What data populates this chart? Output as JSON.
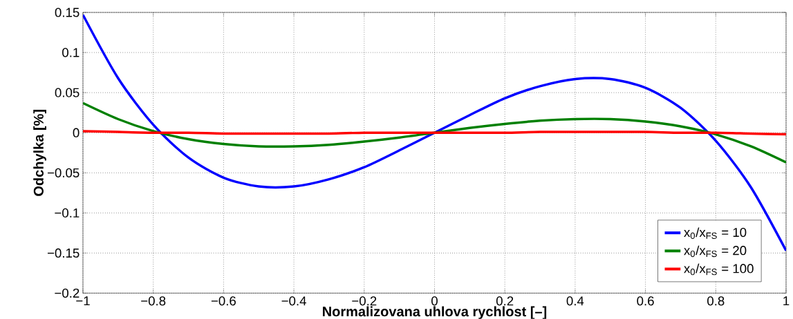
{
  "chart_data": {
    "type": "line",
    "xlabel": "Normalizovana uhlova rychlost [–]",
    "ylabel": "Odchylka [%]",
    "x": [
      -1,
      -0.9,
      -0.8,
      -0.7,
      -0.6,
      -0.5,
      -0.4,
      -0.3,
      -0.2,
      -0.1,
      0,
      0.1,
      0.2,
      0.3,
      0.4,
      0.5,
      0.6,
      0.7,
      0.8,
      0.9,
      1
    ],
    "series": [
      {
        "name": "x$_{0}$/x$_{FS}$ = 10",
        "color": "#0000ff",
        "values": [
          0.147,
          0.068,
          0.01,
          -0.031,
          -0.056,
          -0.067,
          -0.067,
          -0.058,
          -0.043,
          -0.022,
          0,
          0.022,
          0.043,
          0.058,
          0.067,
          0.067,
          0.056,
          0.031,
          -0.01,
          -0.068,
          -0.147
        ]
      },
      {
        "name": "x$_{0}$/x$_{FS}$ = 20",
        "color": "#008000",
        "values": [
          0.037,
          0.017,
          0.002,
          -0.008,
          -0.014,
          -0.017,
          -0.017,
          -0.015,
          -0.011,
          -0.006,
          0,
          0.006,
          0.011,
          0.015,
          0.017,
          0.017,
          0.014,
          0.008,
          -0.002,
          -0.017,
          -0.037
        ]
      },
      {
        "name": "x$_{0}$/x$_{FS}$ = 100",
        "color": "#ff0000",
        "values": [
          0.002,
          0.001,
          0,
          0,
          -0.001,
          -0.001,
          -0.001,
          -0.001,
          0,
          0,
          0,
          0,
          0,
          0.001,
          0.001,
          0.001,
          0.001,
          0,
          0,
          -0.001,
          -0.002
        ]
      }
    ],
    "xlim": [
      -1,
      1
    ],
    "ylim": [
      -0.2,
      0.15
    ],
    "xticks": [
      {
        "value": -1,
        "label": "−1"
      },
      {
        "value": -0.8,
        "label": "−0.8"
      },
      {
        "value": -0.6,
        "label": "−0.6"
      },
      {
        "value": -0.4,
        "label": "−0.4"
      },
      {
        "value": -0.2,
        "label": "−0.2"
      },
      0,
      0.2,
      0.4,
      0.6,
      0.8,
      1
    ],
    "yticks": [
      {
        "value": -0.2,
        "label": "−0.2"
      },
      {
        "value": -0.15,
        "label": "−0.15"
      },
      {
        "value": -0.1,
        "label": "−0.1"
      },
      {
        "value": -0.05,
        "label": "−0.05"
      },
      0,
      0.05,
      0.1,
      0.15
    ],
    "grid": true,
    "legend": "bottom right",
    "marker": "none",
    "line_style": "solid"
  }
}
